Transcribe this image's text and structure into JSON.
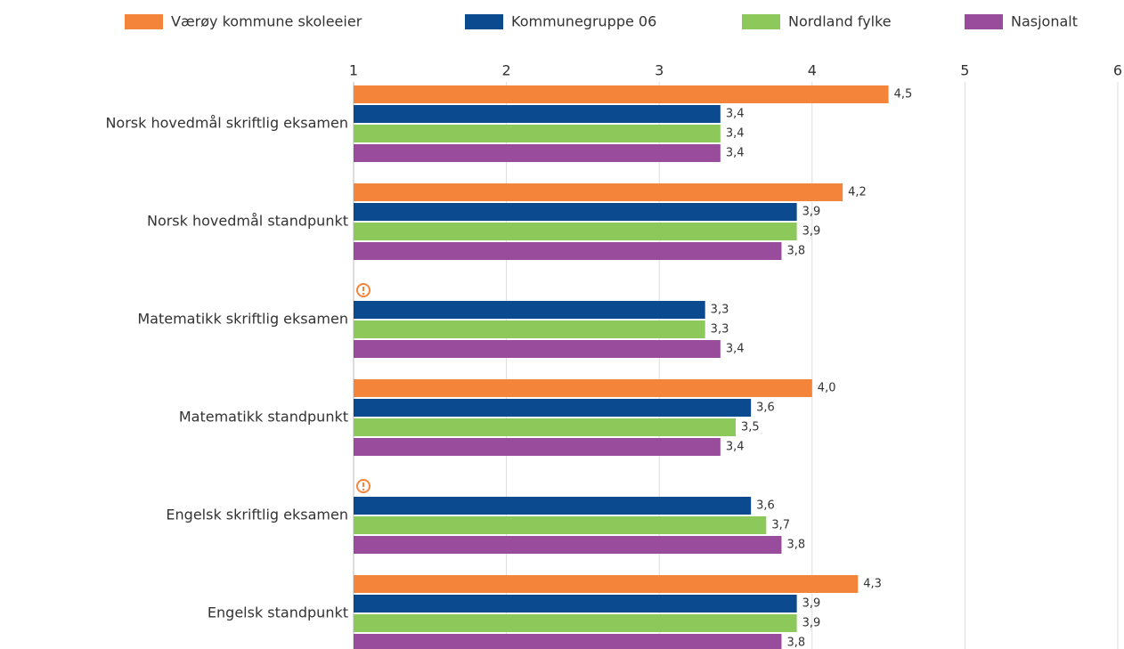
{
  "chart_data": {
    "type": "bar",
    "orientation": "horizontal",
    "categories": [
      "Norsk hovedmål skriftlig eksamen",
      "Norsk hovedmål standpunkt",
      "Matematikk skriftlig eksamen",
      "Matematikk standpunkt",
      "Engelsk skriftlig eksamen",
      "Engelsk standpunkt"
    ],
    "series": [
      {
        "name": "Værøy kommune skoleeier",
        "color": "#f5843b",
        "values": [
          4.5,
          4.2,
          null,
          4.0,
          null,
          4.3
        ],
        "value_labels": [
          "4,5",
          "4,2",
          null,
          "4,0",
          null,
          "4,3"
        ]
      },
      {
        "name": "Kommunegruppe 06",
        "color": "#0b4a8f",
        "values": [
          3.4,
          3.9,
          3.3,
          3.6,
          3.6,
          3.9
        ],
        "value_labels": [
          "3,4",
          "3,9",
          "3,3",
          "3,6",
          "3,6",
          "3,9"
        ]
      },
      {
        "name": "Nordland fylke",
        "color": "#8cc85a",
        "values": [
          3.4,
          3.9,
          3.3,
          3.5,
          3.7,
          3.9
        ],
        "value_labels": [
          "3,4",
          "3,9",
          "3,3",
          "3,5",
          "3,7",
          "3,9"
        ]
      },
      {
        "name": "Nasjonalt",
        "color": "#994c9c",
        "values": [
          3.4,
          3.8,
          3.4,
          3.4,
          3.8,
          3.8
        ],
        "value_labels": [
          "3,4",
          "3,8",
          "3,4",
          "3,4",
          "3,8",
          "3,8"
        ]
      }
    ],
    "xlim": [
      1,
      6
    ],
    "xticks": [
      1,
      2,
      3,
      4,
      5,
      6
    ],
    "grid": true,
    "legend": "top"
  }
}
